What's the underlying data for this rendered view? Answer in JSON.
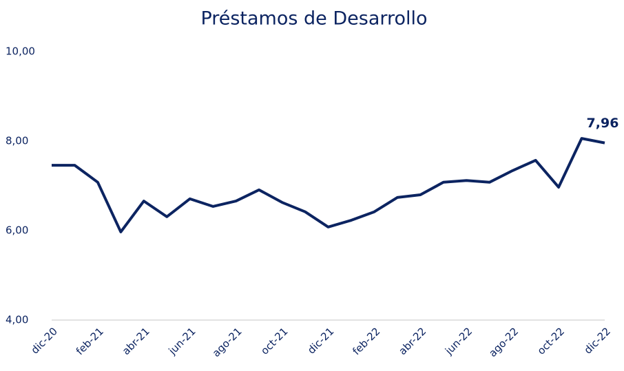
{
  "chart_data": {
    "type": "line",
    "title": "Préstamos de Desarrollo",
    "categories": [
      "dic-20",
      null,
      "feb-21",
      null,
      "abr-21",
      null,
      "jun-21",
      null,
      "ago-21",
      null,
      "oct-21",
      null,
      "dic-21",
      null,
      "feb-22",
      null,
      "abr-22",
      null,
      "jun-22",
      null,
      "ago-22",
      null,
      "oct-22",
      null,
      "dic-22"
    ],
    "values": [
      7.46,
      7.46,
      7.08,
      5.97,
      6.66,
      6.31,
      6.71,
      6.54,
      6.66,
      6.91,
      6.63,
      6.42,
      6.08,
      6.23,
      6.42,
      6.74,
      6.8,
      7.08,
      7.12,
      7.08,
      7.34,
      7.57,
      6.97,
      8.06,
      7.96
    ],
    "value_labels": [
      null,
      null,
      null,
      null,
      null,
      null,
      null,
      null,
      null,
      null,
      null,
      null,
      null,
      null,
      null,
      null,
      null,
      null,
      null,
      null,
      null,
      null,
      null,
      null,
      "7,96"
    ],
    "color": "#0c2461",
    "ylim": [
      4,
      10
    ],
    "yticks": [
      {
        "value": 4,
        "label": "4,00"
      },
      {
        "value": 6,
        "label": "6,00"
      },
      {
        "value": 8,
        "label": "8,00"
      },
      {
        "value": 10,
        "label": "10,00"
      }
    ],
    "grid": false
  }
}
